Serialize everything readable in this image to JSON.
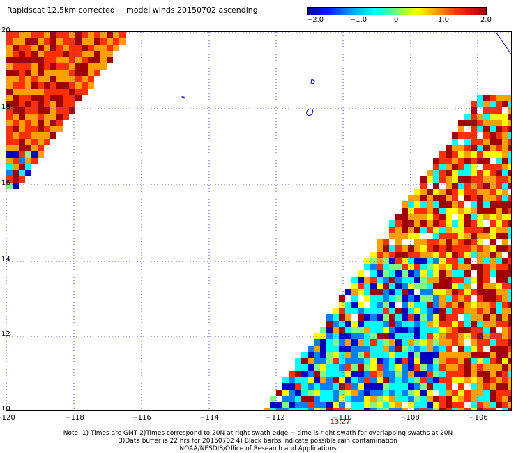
{
  "title": "Rapidscat 12.5km corrected − model winds 20150702 ascending",
  "colorbar": {
    "labels": [
      "−2.0",
      "−1.0",
      "0",
      "1.0",
      "2.0"
    ],
    "range": [
      -2.0,
      2.0
    ]
  },
  "map": {
    "lon_range": [
      -120,
      -105.5
    ],
    "lat_range": [
      10,
      20
    ],
    "x_ticks": [
      "−120",
      "−118",
      "−116",
      "−114",
      "−112",
      "−110",
      "−108",
      "−106"
    ],
    "y_ticks": [
      "20",
      "18",
      "16",
      "14",
      "12",
      "10"
    ],
    "pass_time": "13:27",
    "colors": {
      "very_negative": "#0000c0",
      "negative": "#0080ff",
      "neutral": "#00ffff",
      "positive": "#ffa000",
      "very_positive": "#a00000"
    }
  },
  "notes": [
    "Note: 1) Times are GMT 2)Times correspond to 20N at right swath edge − time is right swath for overlapping swaths at 20N",
    "3)Data buffer is 22 hrs for 20150702 4) Black barbs indicate possible rain contamination",
    "NOAA/NESDIS/Office of Research and Applications"
  ]
}
